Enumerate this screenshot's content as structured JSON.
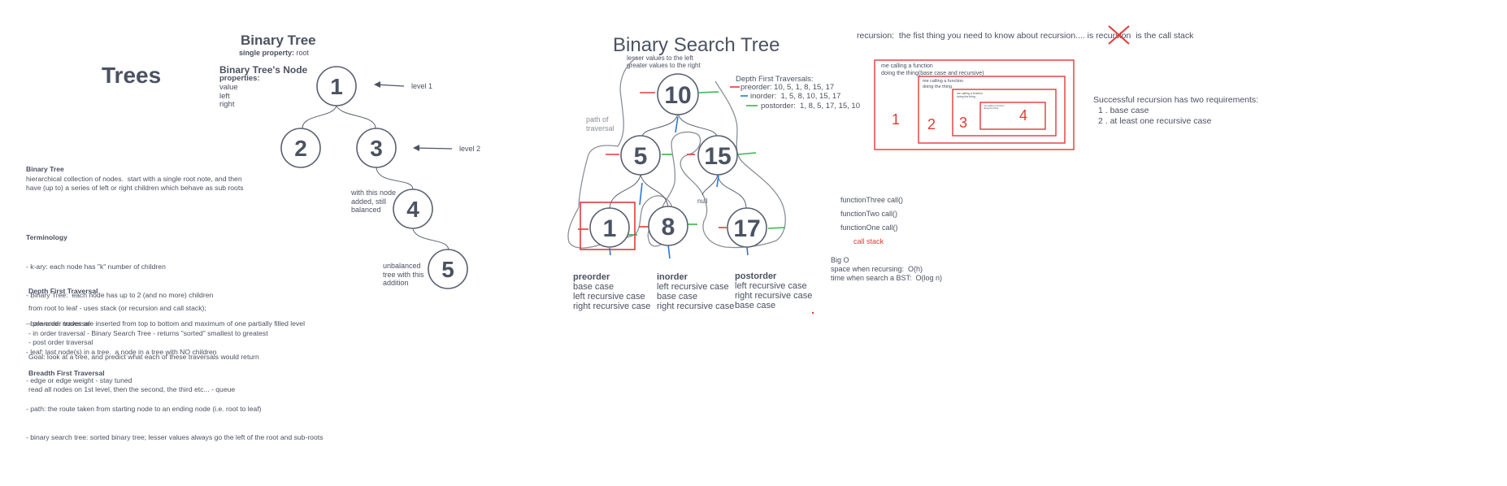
{
  "left": {
    "title": "Trees",
    "binary_tree_heading": "Binary Tree",
    "single_property_label": "single property:",
    "single_property_value": "root",
    "node_heading": "Binary Tree's Node",
    "properties_label": "properties:",
    "properties": [
      "value",
      "left",
      "right"
    ],
    "level1": "level 1",
    "level2": "level 2",
    "added_note": [
      "with this node",
      "added, still",
      "balanced"
    ],
    "unbalanced_note": [
      "unbalanced",
      "tree with this",
      "addition"
    ],
    "nodes": [
      "1",
      "2",
      "3",
      "4",
      "5"
    ],
    "definition_heading": "Binary Tree",
    "definition": [
      "hierarchical collection of nodes.  start with a single root note, and then",
      "have (up to) a series of left or right children which behave as sub roots"
    ],
    "terminology_heading": "Terminology",
    "terminology": [
      "- k-ary: each node has \"k\" number of children",
      "- Binary Tree:  each node has up to 2 (and no more) children",
      "- balanced: nodes are inserted from top to bottom and maximum of one partially filled level",
      "- leaf: last node(s) in a tree.  a node in a tree with NO children",
      "- edge or edge weight - stay tuned",
      "- path: the route taken from starting node to an ending node (i.e. root to leaf)",
      "- binary search tree: sorted binary tree; lesser values always go the left of the root and sub-roots"
    ],
    "dft_heading": "Depth First Traversal",
    "dft_intro": "from root to leaf - uses stack (or recursion and call stack);",
    "dft_list": [
      "- pre-order traversal",
      "- in order traversal - Binary Search Tree - returns \"sorted\" smallest to greatest",
      "- post order traversal"
    ],
    "goal": "Goal: look at a tree, and predict what each of these traversals would return",
    "bft_heading": "Breadth First Traversal",
    "bft_text": "read all nodes on 1st level, then the second, the third etc... - queue"
  },
  "bst": {
    "title": "Binary Search Tree",
    "lesser": "lesser values to the left",
    "greater": "greater values to the right",
    "path_label": [
      "path of",
      "traversal"
    ],
    "null_label": "null",
    "nodes": [
      "10",
      "5",
      "15",
      "1",
      "8",
      "17"
    ],
    "dft_heading": "Depth First Traversals:",
    "preorder_line": "preorder: 10, 5, 1, 8, 15, 17",
    "inorder_line": "inorder:  1, 5, 8, 10, 15, 17",
    "postorder_line": "postorder:  1, 8, 5, 17, 15, 10",
    "preorder_title": "preorder",
    "preorder_steps": [
      "base case",
      "left recursive case",
      "right recursive case"
    ],
    "inorder_title": "inorder",
    "inorder_steps": [
      "left recursive case",
      "base case",
      "right recursive case"
    ],
    "postorder_title": "postorder",
    "postorder_steps": [
      "left recursive case",
      "right recursive case",
      "base case"
    ]
  },
  "recursion": {
    "intro_before": "recursion:  the fist thing you need to know about recursion.... is recu",
    "intro_cross": "rsion",
    "intro_after": "  is the call stack",
    "box1_text": [
      "me calling a function",
      "doing the thing(base case and recursive)"
    ],
    "box2_text": [
      "me calling a function",
      "doing the thing"
    ],
    "box3_text": [
      "me calling a function",
      "doing the thing"
    ],
    "box4_text": [
      "me calling a function",
      "doing the thing"
    ],
    "box_numbers": [
      "1",
      "2",
      "3",
      "4"
    ],
    "requirements_heading": "Successful recursion has two requirements:",
    "requirements": [
      "1 . base case",
      "2 . at least one recursive case"
    ],
    "calls": [
      "functionThree call()",
      "functionTwo call()",
      "functionOne call()"
    ],
    "call_stack_label": "call stack",
    "bigo_heading": "Big O",
    "bigo_lines": [
      "space when recursing:  O(h)",
      "time when search a BST:  O(log n)"
    ]
  },
  "colors": {
    "text": "#4a5060",
    "node_stroke": "#5a6070",
    "red": "#e23a36",
    "blue": "#2a78d6",
    "green": "#36b44a"
  }
}
